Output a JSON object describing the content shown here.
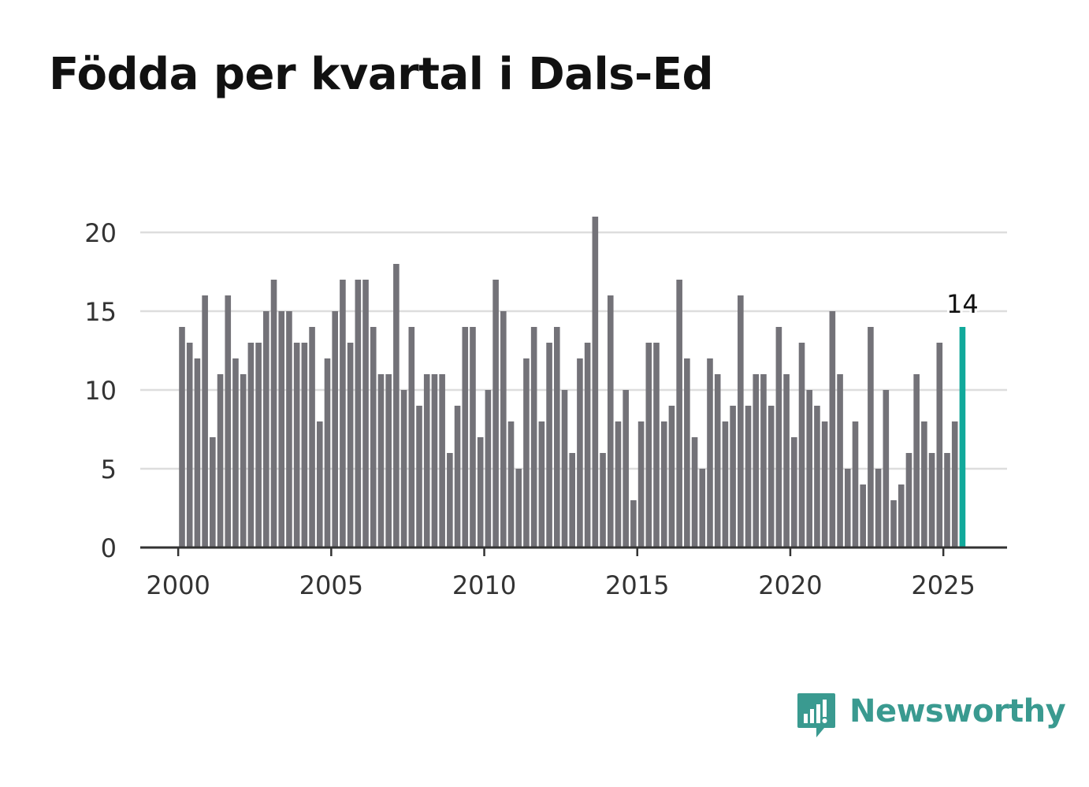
{
  "title": "Födda per kvartal i Dals-Ed",
  "brand": {
    "name": "Newsworthy",
    "color": "#3a9a90",
    "icon": "newsworthy-logo-icon"
  },
  "colors": {
    "bar": "#737278",
    "highlight": "#11a99b",
    "grid": "#dddddd",
    "axis": "#333333",
    "text": "#333333"
  },
  "chart_data": {
    "type": "bar",
    "title": "Födda per kvartal i Dals-Ed",
    "xlabel": "",
    "ylabel": "",
    "ylim": [
      0,
      21
    ],
    "yticks": [
      0,
      5,
      10,
      15,
      20
    ],
    "xticks": [
      "2000",
      "2005",
      "2010",
      "2015",
      "2020",
      "2025"
    ],
    "xtick_years": [
      2000,
      2005,
      2010,
      2015,
      2020,
      2025
    ],
    "start_year": 2000,
    "start_quarter": 1,
    "grid": true,
    "highlight_last": true,
    "last_label": "14",
    "values": [
      14,
      13,
      12,
      16,
      7,
      11,
      16,
      12,
      11,
      13,
      13,
      15,
      17,
      15,
      15,
      13,
      13,
      14,
      8,
      12,
      15,
      17,
      13,
      17,
      17,
      14,
      11,
      11,
      18,
      10,
      14,
      9,
      11,
      11,
      11,
      6,
      9,
      14,
      14,
      7,
      10,
      17,
      15,
      8,
      5,
      12,
      14,
      8,
      13,
      14,
      10,
      6,
      12,
      13,
      21,
      6,
      16,
      8,
      10,
      3,
      8,
      13,
      13,
      8,
      9,
      17,
      12,
      7,
      5,
      12,
      11,
      8,
      9,
      16,
      9,
      11,
      11,
      9,
      14,
      11,
      7,
      13,
      10,
      9,
      8,
      15,
      11,
      5,
      8,
      4,
      14,
      5,
      10,
      3,
      4,
      6,
      11,
      8,
      6,
      13,
      6,
      8,
      14
    ]
  }
}
